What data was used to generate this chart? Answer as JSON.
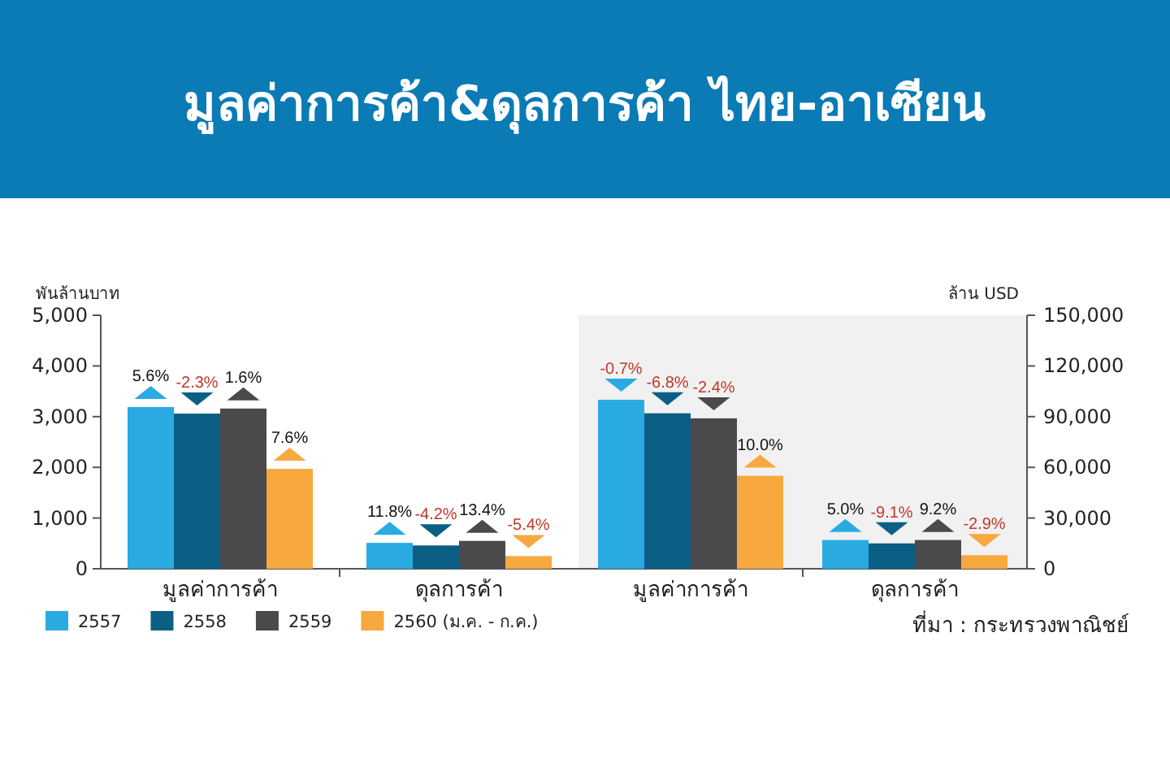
{
  "chart_data": [
    {
      "type": "bar",
      "title": "มูลค่าการค้า&ดุลการค้า ไทย-อาเซียน",
      "ylabel": "พันล้านบาท",
      "categories": [
        "มูลค่าการค้า",
        "ดุลการค้า"
      ],
      "ylim": [
        0,
        5000
      ],
      "yticks": [
        {
          "value": 0,
          "label": "0"
        },
        {
          "value": 1000,
          "label": "1,000"
        },
        {
          "value": 2000,
          "label": "2,000"
        },
        {
          "value": 3000,
          "label": "3,000"
        },
        {
          "value": 4000,
          "label": "4,000"
        },
        {
          "value": 5000,
          "label": "5,000"
        }
      ],
      "legend": "bottom",
      "grid": false,
      "series": [
        {
          "name": "2557",
          "color": "#29abe2",
          "values": [
            3190,
            510
          ]
        },
        {
          "name": "2558",
          "color": "#0b5f85",
          "values": [
            3060,
            460
          ]
        },
        {
          "name": "2559",
          "color": "#4a4a4c",
          "values": [
            3160,
            550
          ]
        },
        {
          "name": "2560 (ม.ค. - ก.ค.)",
          "color": "#f7a83e",
          "values": [
            1970,
            250
          ]
        }
      ],
      "annotations": [
        "5.6%",
        "-2.3%",
        "1.6%",
        "7.6%",
        "11.8%",
        "-4.2%",
        "13.4%",
        "-5.4%"
      ]
    },
    {
      "type": "bar",
      "y2label": "ล้าน USD",
      "categories": [
        "มูลค่าการค้า",
        "ดุลการค้า"
      ],
      "y2lim": [
        0,
        150000
      ],
      "y2ticks": [
        {
          "value": 0,
          "label": "0"
        },
        {
          "value": 30000,
          "label": "30,000"
        },
        {
          "value": 60000,
          "label": "60,000"
        },
        {
          "value": 90000,
          "label": "90,000"
        },
        {
          "value": 120000,
          "label": "120,000"
        },
        {
          "value": 150000,
          "label": "150,000"
        }
      ],
      "grid": false,
      "series": [
        {
          "color": "#29abe2",
          "axis": "y2",
          "values": [
            100000,
            17000
          ]
        },
        {
          "color": "#0b5f85",
          "axis": "y2",
          "values": [
            92000,
            15000
          ]
        },
        {
          "color": "#4a4a4c",
          "axis": "y2",
          "values": [
            89000,
            17000
          ]
        },
        {
          "color": "#f7a83e",
          "axis": "y2",
          "values": [
            55000,
            8000
          ]
        }
      ],
      "annotations": [
        "-0.7%",
        "-6.8%",
        "-2.4%",
        "10.0%",
        "5.0%",
        "-9.1%",
        "9.2%",
        "-2.9%",
        "ที่มา : กระทรวงพาณิชย์"
      ]
    }
  ]
}
